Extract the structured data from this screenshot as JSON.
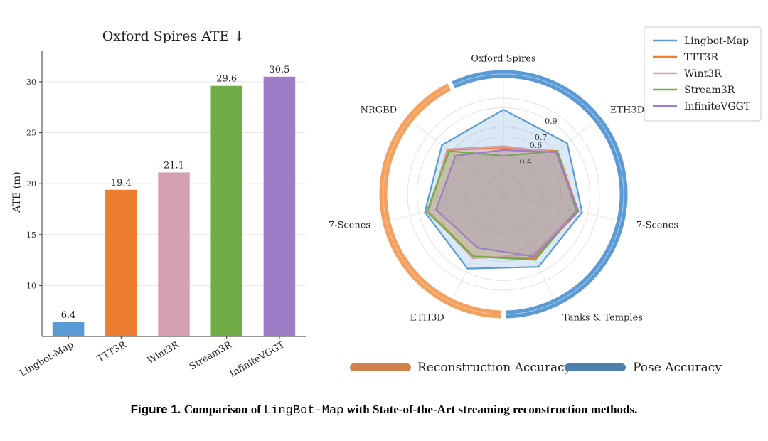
{
  "colors": {
    "Lingbot-Map": "#5b9bd5",
    "TTT3R": "#ed7d31",
    "Wint3R": "#d5a1b1",
    "Stream3R": "#70ad47",
    "InfiniteVGGT": "#9e7cc8",
    "reconstruction": "#d0824a",
    "pose": "#4f7fae"
  },
  "chart_data": [
    {
      "type": "bar",
      "title": "Oxford Spires ATE ↓",
      "xlabel": "",
      "ylabel": "ATE (m)",
      "categories": [
        "Lingbot-Map",
        "TTT3R",
        "Wint3R",
        "Stream3R",
        "InfiniteVGGT"
      ],
      "values": [
        6.4,
        19.4,
        21.1,
        29.6,
        30.5
      ],
      "value_labels": [
        "6.4",
        "19.4",
        "21.1",
        "29.6",
        "30.5"
      ],
      "ylim": [
        5,
        33
      ],
      "yticks": [
        10,
        15,
        20,
        25,
        30
      ],
      "ytick_labels": [
        "10",
        "15",
        "20",
        "25",
        "30"
      ],
      "grid": true
    },
    {
      "type": "radar",
      "axes": [
        "Oxford Spires",
        "ETH3D",
        "7-Scenes",
        "Tanks & Temples",
        "ETH3D",
        "7-Scenes",
        "NRGBD"
      ],
      "axis_groups": [
        "pose",
        "pose",
        "pose",
        "pose",
        "reconstruction",
        "reconstruction",
        "reconstruction"
      ],
      "rlim": [
        0,
        1
      ],
      "rings": [
        0.4,
        0.6,
        0.7,
        0.9
      ],
      "ring_labels": [
        "0.4",
        "0.6",
        "0.7",
        "0.9"
      ],
      "series": [
        {
          "name": "Lingbot-Map",
          "values": [
            0.88,
            0.85,
            0.84,
            0.84,
            0.86,
            0.84,
            0.82
          ]
        },
        {
          "name": "TTT3R",
          "values": [
            0.48,
            0.72,
            0.8,
            0.74,
            0.72,
            0.8,
            0.74
          ]
        },
        {
          "name": "Wint3R",
          "values": [
            0.5,
            0.7,
            0.78,
            0.7,
            0.74,
            0.8,
            0.75
          ]
        },
        {
          "name": "Stream3R",
          "values": [
            0.4,
            0.72,
            0.78,
            0.76,
            0.72,
            0.82,
            0.72
          ]
        },
        {
          "name": "InfiniteVGGT",
          "values": [
            0.46,
            0.7,
            0.8,
            0.72,
            0.62,
            0.72,
            0.64
          ]
        }
      ],
      "legend": {
        "placement": "top-right",
        "entries": [
          "Lingbot-Map",
          "TTT3R",
          "Wint3R",
          "Stream3R",
          "InfiniteVGGT"
        ]
      },
      "group_legend": {
        "reconstruction_label": "Reconstruction Accuracy",
        "pose_label": "Pose Accuracy"
      }
    }
  ],
  "caption": {
    "label": "Figure 1.",
    "text_before": "Comparison of",
    "method": "LingBot-Map",
    "text_after": "with State-of-the-Art streaming reconstruction methods."
  }
}
